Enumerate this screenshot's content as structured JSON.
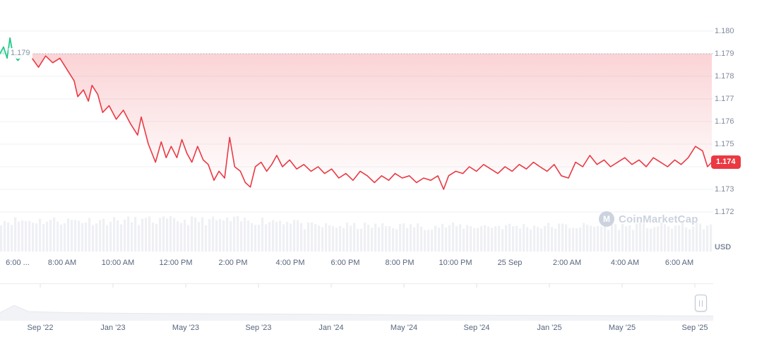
{
  "watermark": {
    "icon": "M",
    "text": "CoinMarketCap"
  },
  "price_labels": {
    "open": "1.179",
    "last": "1.174"
  },
  "colors": {
    "up": "#16c784",
    "down": "#ea3943",
    "grid": "#eff2f5",
    "ref_line": "#9aa4b6",
    "volume": "#eef0f4",
    "axis_text": "#808a9d",
    "label_text": "#58667e",
    "badge_bg": "#ea3943",
    "watermark": "#ccd3df",
    "nav_fill": "#f1f3f7",
    "nav_stroke": "#e4e8ee",
    "nav_tick": "#dde2ea"
  },
  "chart_data": {
    "type": "area",
    "title": "",
    "y_unit": "USD",
    "ylim": [
      1.172,
      1.18
    ],
    "y_tick": 0.001,
    "y_tick_labels": [
      "1.180",
      "1.179",
      "1.178",
      "1.177",
      "1.176",
      "1.175",
      "1.174",
      "1.173",
      "1.172"
    ],
    "x_tick_labels": [
      "6:00 ...",
      "8:00 AM",
      "10:00 AM",
      "12:00 PM",
      "2:00 PM",
      "4:00 PM",
      "6:00 PM",
      "8:00 PM",
      "10:00 PM",
      "25 Sep",
      "2:00 AM",
      "4:00 AM",
      "6:00 AM"
    ],
    "open": 1.179,
    "last": 1.1742,
    "green_until": 0.045,
    "points": [
      [
        0.0,
        1.179
      ],
      [
        0.005,
        1.1793
      ],
      [
        0.01,
        1.1788
      ],
      [
        0.014,
        1.1797
      ],
      [
        0.018,
        1.179
      ],
      [
        0.025,
        1.1787
      ],
      [
        0.035,
        1.1791
      ],
      [
        0.045,
        1.1788
      ],
      [
        0.054,
        1.1784
      ],
      [
        0.064,
        1.1789
      ],
      [
        0.074,
        1.1786
      ],
      [
        0.084,
        1.1788
      ],
      [
        0.094,
        1.1783
      ],
      [
        0.104,
        1.1778
      ],
      [
        0.109,
        1.1771
      ],
      [
        0.117,
        1.1774
      ],
      [
        0.124,
        1.1769
      ],
      [
        0.129,
        1.1776
      ],
      [
        0.137,
        1.1772
      ],
      [
        0.144,
        1.1764
      ],
      [
        0.153,
        1.1767
      ],
      [
        0.163,
        1.1761
      ],
      [
        0.173,
        1.1765
      ],
      [
        0.183,
        1.1759
      ],
      [
        0.193,
        1.1754
      ],
      [
        0.198,
        1.1762
      ],
      [
        0.208,
        1.175
      ],
      [
        0.218,
        1.1742
      ],
      [
        0.226,
        1.1751
      ],
      [
        0.233,
        1.1744
      ],
      [
        0.24,
        1.1749
      ],
      [
        0.248,
        1.1744
      ],
      [
        0.255,
        1.1752
      ],
      [
        0.262,
        1.1746
      ],
      [
        0.269,
        1.1742
      ],
      [
        0.277,
        1.1749
      ],
      [
        0.285,
        1.1743
      ],
      [
        0.292,
        1.1741
      ],
      [
        0.3,
        1.1734
      ],
      [
        0.307,
        1.1738
      ],
      [
        0.315,
        1.1735
      ],
      [
        0.322,
        1.1753
      ],
      [
        0.329,
        1.174
      ],
      [
        0.337,
        1.1738
      ],
      [
        0.344,
        1.1733
      ],
      [
        0.351,
        1.1731
      ],
      [
        0.358,
        1.174
      ],
      [
        0.366,
        1.1742
      ],
      [
        0.374,
        1.1738
      ],
      [
        0.381,
        1.1741
      ],
      [
        0.388,
        1.1745
      ],
      [
        0.396,
        1.174
      ],
      [
        0.406,
        1.1743
      ],
      [
        0.416,
        1.1739
      ],
      [
        0.426,
        1.1741
      ],
      [
        0.436,
        1.1738
      ],
      [
        0.446,
        1.174
      ],
      [
        0.455,
        1.1737
      ],
      [
        0.465,
        1.1739
      ],
      [
        0.475,
        1.1735
      ],
      [
        0.485,
        1.1737
      ],
      [
        0.495,
        1.1734
      ],
      [
        0.505,
        1.1738
      ],
      [
        0.515,
        1.1736
      ],
      [
        0.525,
        1.1733
      ],
      [
        0.535,
        1.1736
      ],
      [
        0.545,
        1.1734
      ],
      [
        0.554,
        1.1737
      ],
      [
        0.564,
        1.1735
      ],
      [
        0.574,
        1.1736
      ],
      [
        0.584,
        1.1733
      ],
      [
        0.594,
        1.1735
      ],
      [
        0.604,
        1.1734
      ],
      [
        0.614,
        1.1736
      ],
      [
        0.622,
        1.173
      ],
      [
        0.629,
        1.1736
      ],
      [
        0.639,
        1.1738
      ],
      [
        0.649,
        1.1737
      ],
      [
        0.658,
        1.174
      ],
      [
        0.668,
        1.1738
      ],
      [
        0.678,
        1.1741
      ],
      [
        0.688,
        1.1739
      ],
      [
        0.698,
        1.1737
      ],
      [
        0.708,
        1.174
      ],
      [
        0.718,
        1.1738
      ],
      [
        0.728,
        1.1741
      ],
      [
        0.738,
        1.1739
      ],
      [
        0.748,
        1.1742
      ],
      [
        0.757,
        1.174
      ],
      [
        0.767,
        1.1738
      ],
      [
        0.777,
        1.1741
      ],
      [
        0.787,
        1.1736
      ],
      [
        0.797,
        1.1735
      ],
      [
        0.807,
        1.1742
      ],
      [
        0.817,
        1.174
      ],
      [
        0.827,
        1.1745
      ],
      [
        0.837,
        1.1741
      ],
      [
        0.847,
        1.1743
      ],
      [
        0.856,
        1.174
      ],
      [
        0.866,
        1.1742
      ],
      [
        0.876,
        1.1744
      ],
      [
        0.886,
        1.1741
      ],
      [
        0.896,
        1.1743
      ],
      [
        0.906,
        1.174
      ],
      [
        0.916,
        1.1744
      ],
      [
        0.926,
        1.1742
      ],
      [
        0.936,
        1.174
      ],
      [
        0.946,
        1.1743
      ],
      [
        0.955,
        1.1741
      ],
      [
        0.965,
        1.1744
      ],
      [
        0.975,
        1.1749
      ],
      [
        0.985,
        1.1747
      ],
      [
        0.992,
        1.174
      ],
      [
        0.998,
        1.1742
      ]
    ],
    "volume_profile": [
      {
        "until": 0.42,
        "level": 0.95
      },
      {
        "until": 1.0,
        "level": 0.78
      }
    ],
    "navigator_tick_labels": [
      "Sep '22",
      "Jan '23",
      "May '23",
      "Sep '23",
      "Jan '24",
      "May '24",
      "Sep '24",
      "Jan '25",
      "May '25",
      "Sep '25"
    ],
    "navigator_profile": [
      [
        0,
        0.22
      ],
      [
        0.02,
        0.42
      ],
      [
        0.04,
        0.25
      ],
      [
        0.1,
        0.22
      ],
      [
        0.2,
        0.2
      ],
      [
        0.3,
        0.19
      ],
      [
        0.42,
        0.18
      ],
      [
        0.55,
        0.16
      ],
      [
        0.7,
        0.15
      ],
      [
        0.85,
        0.14
      ],
      [
        1.0,
        0.13
      ]
    ]
  }
}
